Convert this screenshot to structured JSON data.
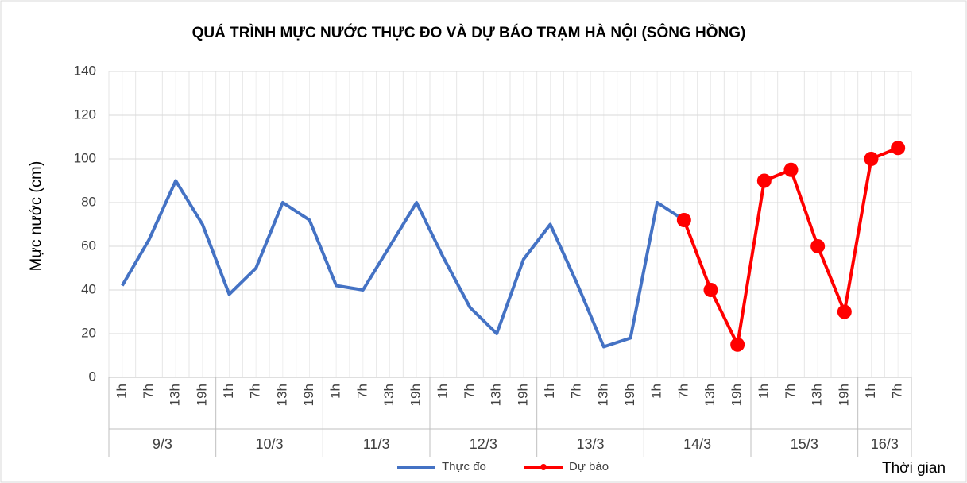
{
  "chart_data": {
    "type": "line",
    "title": "QUÁ TRÌNH MỰC NƯỚC THỰC ĐO VÀ DỰ BÁO TRẠM HÀ NỘI (SÔNG HỒNG)",
    "y_label": "Mực nước (cm)",
    "x_label": "Thời gian",
    "groups": [
      {
        "label": "9/3",
        "hours": [
          "1h",
          "7h",
          "13h",
          "19h"
        ]
      },
      {
        "label": "10/3",
        "hours": [
          "1h",
          "7h",
          "13h",
          "19h"
        ]
      },
      {
        "label": "11/3",
        "hours": [
          "1h",
          "7h",
          "13h",
          "19h"
        ]
      },
      {
        "label": "12/3",
        "hours": [
          "1h",
          "7h",
          "13h",
          "19h"
        ]
      },
      {
        "label": "13/3",
        "hours": [
          "1h",
          "7h",
          "13h",
          "19h"
        ]
      },
      {
        "label": "14/3",
        "hours": [
          "1h",
          "7h",
          "13h",
          "19h"
        ]
      },
      {
        "label": "15/3",
        "hours": [
          "1h",
          "7h",
          "13h",
          "19h"
        ]
      },
      {
        "label": "16/3",
        "hours": [
          "1h",
          "7h"
        ]
      }
    ],
    "series": [
      {
        "name": "Thực đo",
        "color": "#4472c4",
        "markers": false,
        "values": [
          42,
          63,
          90,
          70,
          38,
          50,
          80,
          72,
          42,
          40,
          60,
          80,
          55,
          32,
          20,
          54,
          70,
          43,
          14,
          18,
          80,
          72,
          null,
          null,
          null,
          null,
          null,
          null,
          null,
          null
        ]
      },
      {
        "name": "Dự báo",
        "color": "#ff0000",
        "markers": true,
        "values": [
          null,
          null,
          null,
          null,
          null,
          null,
          null,
          null,
          null,
          null,
          null,
          null,
          null,
          null,
          null,
          null,
          null,
          null,
          null,
          null,
          null,
          72,
          40,
          15,
          90,
          95,
          60,
          30,
          100,
          105
        ]
      }
    ],
    "ylim": [
      0,
      140
    ],
    "yticks": [
      0,
      20,
      40,
      60,
      80,
      100,
      120,
      140
    ],
    "grid": true
  }
}
